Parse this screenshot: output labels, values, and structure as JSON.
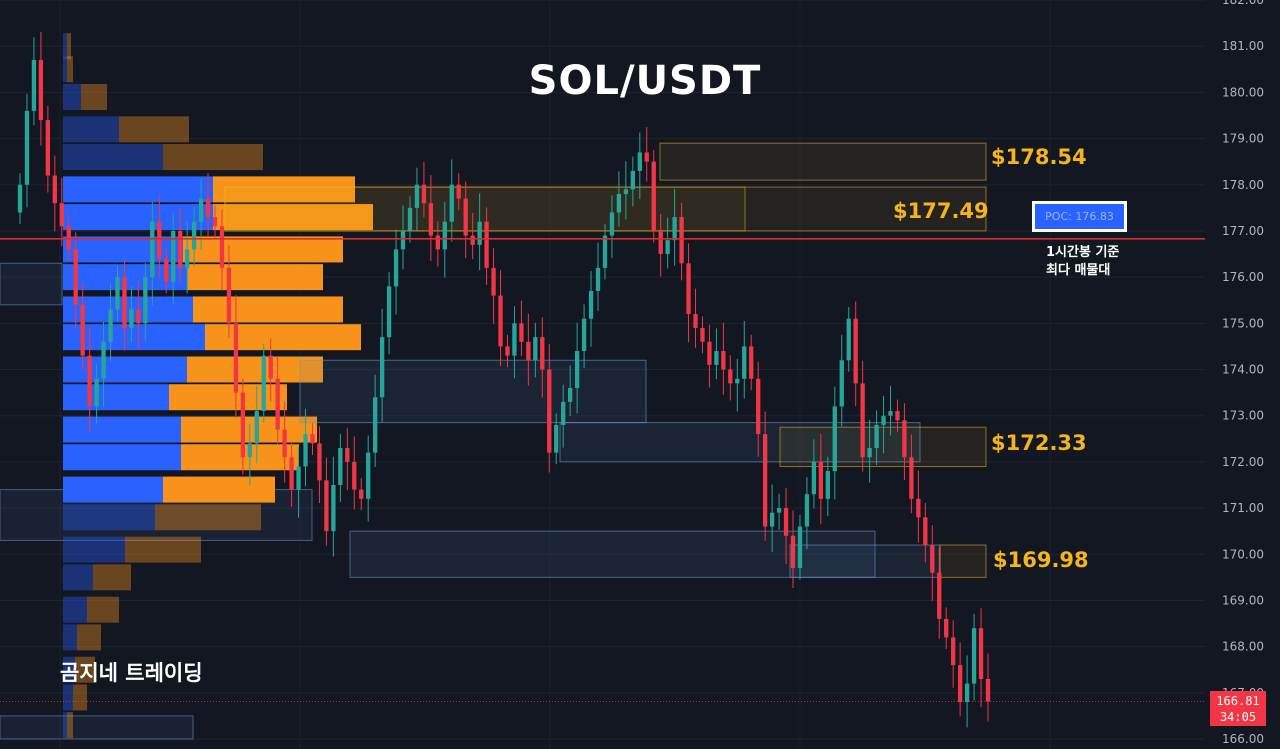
{
  "chart_data": {
    "type": "candlestick",
    "title": "SOL/USDT",
    "y_axis": {
      "min": 166.0,
      "max": 182.0,
      "tick_labels": [
        "182.00",
        "181.00",
        "180.00",
        "179.00",
        "178.00",
        "177.00",
        "176.00",
        "175.00",
        "174.00",
        "173.00",
        "172.00",
        "171.00",
        "170.00",
        "169.00",
        "168.00",
        "167.00",
        "166.00"
      ],
      "position": "right"
    },
    "grid": true,
    "candles_close": [
      178.0,
      179.6,
      180.7,
      179.4,
      178.2,
      177.6,
      177.1,
      176.6,
      175.4,
      174.3,
      173.2,
      173.8,
      174.6,
      175.3,
      176.0,
      174.9,
      175.3,
      175.0,
      176.0,
      177.2,
      176.4,
      175.9,
      177.0,
      176.2,
      176.6,
      177.2,
      177.7,
      177.3,
      177.1,
      176.2,
      175.0,
      173.5,
      172.1,
      172.4,
      173.1,
      174.3,
      173.8,
      172.7,
      172.1,
      171.4,
      171.9,
      172.6,
      172.4,
      171.6,
      170.5,
      171.5,
      172.3,
      172.0,
      171.4,
      171.2,
      172.2,
      173.4,
      174.7,
      175.8,
      176.6,
      177.0,
      177.5,
      178.0,
      177.6,
      176.9,
      176.6,
      177.2,
      178.0,
      177.7,
      176.9,
      176.7,
      177.2,
      176.2,
      175.6,
      174.5,
      174.3,
      175.0,
      174.6,
      174.2,
      174.7,
      174.0,
      172.2,
      172.8,
      173.3,
      173.6,
      174.4,
      175.1,
      175.7,
      176.2,
      176.9,
      177.4,
      177.8,
      177.9,
      178.3,
      178.7,
      178.5,
      177.0,
      176.5,
      176.8,
      177.3,
      176.3,
      175.2,
      174.9,
      174.6,
      174.1,
      174.4,
      174.0,
      173.7,
      173.8,
      174.5,
      173.8,
      172.6,
      170.6,
      170.9,
      171.0,
      170.4,
      169.7,
      170.6,
      171.3,
      172.0,
      171.2,
      171.8,
      173.2,
      174.2,
      175.1,
      173.7,
      172.1,
      172.3,
      172.8,
      173.0,
      173.1,
      172.9,
      172.1,
      171.2,
      170.8,
      170.2,
      169.6,
      168.6,
      168.2,
      167.6,
      166.8,
      167.2,
      168.4,
      167.3,
      166.81
    ],
    "volume_profile": {
      "bins": [
        {
          "price": 181.0,
          "buy": 4,
          "sell": 4
        },
        {
          "price": 180.5,
          "buy": 4,
          "sell": 6
        },
        {
          "price": 179.9,
          "buy": 18,
          "sell": 26
        },
        {
          "price": 179.2,
          "buy": 56,
          "sell": 70
        },
        {
          "price": 178.6,
          "buy": 100,
          "sell": 100
        },
        {
          "price": 177.9,
          "buy": 150,
          "sell": 142
        },
        {
          "price": 177.3,
          "buy": 150,
          "sell": 160
        },
        {
          "price": 176.6,
          "buy": 120,
          "sell": 160
        },
        {
          "price": 176.0,
          "buy": 124,
          "sell": 136
        },
        {
          "price": 175.3,
          "buy": 130,
          "sell": 150
        },
        {
          "price": 174.7,
          "buy": 142,
          "sell": 156
        },
        {
          "price": 174.0,
          "buy": 124,
          "sell": 136
        },
        {
          "price": 173.4,
          "buy": 106,
          "sell": 118
        },
        {
          "price": 172.7,
          "buy": 118,
          "sell": 136
        },
        {
          "price": 172.1,
          "buy": 118,
          "sell": 118
        },
        {
          "price": 171.4,
          "buy": 100,
          "sell": 112
        },
        {
          "price": 170.8,
          "buy": 92,
          "sell": 106
        },
        {
          "price": 170.1,
          "buy": 62,
          "sell": 76
        },
        {
          "price": 169.5,
          "buy": 30,
          "sell": 38
        },
        {
          "price": 168.8,
          "buy": 24,
          "sell": 32
        },
        {
          "price": 168.2,
          "buy": 14,
          "sell": 24
        },
        {
          "price": 167.5,
          "buy": 12,
          "sell": 20
        },
        {
          "price": 166.9,
          "buy": 10,
          "sell": 14
        },
        {
          "price": 166.3,
          "buy": 4,
          "sell": 6
        }
      ]
    },
    "zones": [
      {
        "label": "$178.54",
        "low": 178.1,
        "high": 178.9,
        "color": "#f5b41b"
      },
      {
        "label": "$177.49",
        "low": 177.0,
        "high": 177.95,
        "color": "#f5b41b"
      },
      {
        "label": "$172.33",
        "low": 171.9,
        "high": 172.75,
        "color": "#f5b41b"
      },
      {
        "label": "$169.98",
        "low": 169.5,
        "high": 170.2,
        "color": "#f5b41b"
      }
    ],
    "poc": {
      "value": 176.83,
      "text": "POC: 176.83",
      "note_line1": "1시간봉 기준",
      "note_line2": "최다 매물대"
    },
    "last_price": {
      "value": "166.81",
      "countdown": "34:05"
    }
  },
  "brand": "곰지네 트레이딩",
  "colors": {
    "background": "#131722",
    "up": "#26a69a",
    "down": "#f23645",
    "zone": "#f5b41b",
    "profile_buy": "#2962ff",
    "profile_sell": "#f7931a",
    "poc_line": "#d32f2f"
  }
}
